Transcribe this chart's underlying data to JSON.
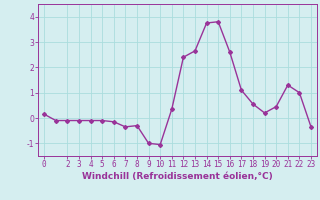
{
  "x": [
    0,
    1,
    2,
    3,
    4,
    5,
    6,
    7,
    8,
    9,
    10,
    11,
    12,
    13,
    14,
    15,
    16,
    17,
    18,
    19,
    20,
    21,
    22,
    23
  ],
  "y": [
    0.15,
    -0.1,
    -0.1,
    -0.1,
    -0.1,
    -0.1,
    -0.15,
    -0.35,
    -0.3,
    -1.0,
    -1.05,
    0.35,
    2.4,
    2.65,
    3.75,
    3.8,
    2.6,
    1.1,
    0.55,
    0.2,
    0.45,
    1.3,
    1.0,
    -0.35
  ],
  "line_color": "#993399",
  "marker": "D",
  "marker_size": 2,
  "linewidth": 1.0,
  "xlabel": "Windchill (Refroidissement éolien,°C)",
  "xlabel_fontsize": 6.5,
  "ylim": [
    -1.5,
    4.5
  ],
  "xlim": [
    -0.5,
    23.5
  ],
  "yticks": [
    -1,
    0,
    1,
    2,
    3,
    4
  ],
  "xticks": [
    0,
    2,
    3,
    4,
    5,
    6,
    7,
    8,
    9,
    10,
    11,
    12,
    13,
    14,
    15,
    16,
    17,
    18,
    19,
    20,
    21,
    22,
    23
  ],
  "grid_color": "#aadddd",
  "bg_color": "#d5eef0",
  "tick_fontsize": 5.5,
  "tick_color": "#993399",
  "axis_color": "#993399"
}
